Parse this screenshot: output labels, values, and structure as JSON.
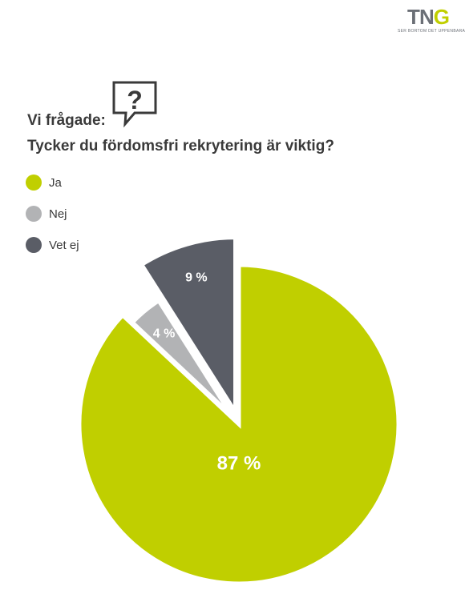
{
  "logo": {
    "t": "T",
    "n": "N",
    "g": "G",
    "tagline": "SER BORTOM DET UPPENBARA"
  },
  "header": {
    "asked": "Vi frågade:",
    "question": "Tycker du fördomsfri rekrytering är viktig?"
  },
  "icons": {
    "question_bubble": "question-bubble-icon"
  },
  "chart_data": {
    "type": "pie",
    "title": "Tycker du fördomsfri rekrytering är viktig?",
    "legend_position": "top-left",
    "slices": [
      {
        "name": "Ja",
        "value": 87,
        "label": "87 %",
        "color": "#c0cf00"
      },
      {
        "name": "Nej",
        "value": 4,
        "label": "4 %",
        "color": "#b2b3b5"
      },
      {
        "name": "Vet ej",
        "value": 9,
        "label": "9 %",
        "color": "#5a5d66"
      }
    ]
  }
}
